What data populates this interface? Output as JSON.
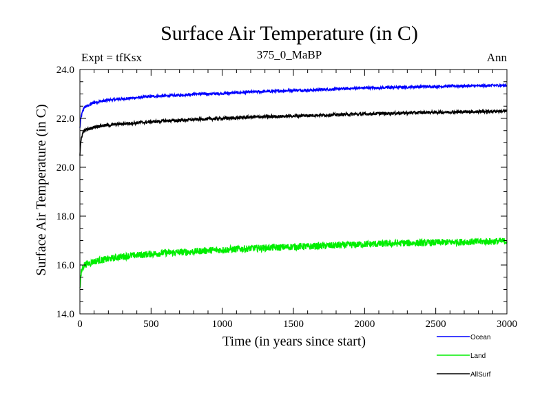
{
  "chart_data": {
    "type": "line",
    "title": "Surface Air Temperature (in C)",
    "subtitle_left": "Expt = tfKsx",
    "subtitle_center": "375_0_MaBP",
    "subtitle_right": "Ann",
    "xlabel": "Time (in years since start)",
    "ylabel": "Surface Air Temperature (in C)",
    "xlim": [
      0,
      3000
    ],
    "ylim": [
      14.0,
      24.0
    ],
    "x_ticks": [
      0,
      500,
      1000,
      1500,
      2000,
      2500,
      3000
    ],
    "x_tick_labels": [
      "0",
      "500",
      "1000",
      "1500",
      "2000",
      "2500",
      "3000"
    ],
    "y_ticks": [
      14,
      16,
      18,
      20,
      22,
      24
    ],
    "y_tick_labels": [
      "14.0",
      "16.0",
      "18.0",
      "20.0",
      "22.0",
      "24.0"
    ],
    "grid": false,
    "legend_position": "bottom-right",
    "series": [
      {
        "name": "Ocean",
        "color": "#0000ff",
        "x": [
          0,
          5,
          10,
          20,
          30,
          50,
          80,
          100,
          150,
          200,
          300,
          400,
          500,
          600,
          700,
          800,
          900,
          1000,
          1100,
          1200,
          1300,
          1400,
          1500,
          1600,
          1700,
          1800,
          1900,
          2000,
          2100,
          2200,
          2300,
          2400,
          2500,
          2600,
          2700,
          2800,
          2900,
          3000
        ],
        "values": [
          21.6,
          21.9,
          22.1,
          22.3,
          22.45,
          22.5,
          22.6,
          22.65,
          22.7,
          22.75,
          22.8,
          22.85,
          22.9,
          22.92,
          22.95,
          23.0,
          23.0,
          23.02,
          23.05,
          23.08,
          23.1,
          23.12,
          23.15,
          23.15,
          23.18,
          23.2,
          23.22,
          23.25,
          23.25,
          23.27,
          23.28,
          23.3,
          23.3,
          23.32,
          23.33,
          23.33,
          23.35,
          23.35
        ],
        "noise": 0.05
      },
      {
        "name": "Land",
        "color": "#00ee00",
        "x": [
          0,
          5,
          10,
          20,
          30,
          50,
          80,
          100,
          150,
          200,
          300,
          400,
          500,
          600,
          700,
          800,
          900,
          1000,
          1100,
          1200,
          1300,
          1400,
          1500,
          1600,
          1700,
          1800,
          1900,
          2000,
          2100,
          2200,
          2300,
          2400,
          2500,
          2600,
          2700,
          2800,
          2900,
          3000
        ],
        "values": [
          15.0,
          15.4,
          15.7,
          15.9,
          16.0,
          16.05,
          16.1,
          16.15,
          16.2,
          16.25,
          16.35,
          16.4,
          16.45,
          16.5,
          16.52,
          16.55,
          16.6,
          16.62,
          16.65,
          16.68,
          16.7,
          16.72,
          16.75,
          16.76,
          16.78,
          16.8,
          16.82,
          16.85,
          16.86,
          16.88,
          16.9,
          16.9,
          16.92,
          16.93,
          16.95,
          16.95,
          16.97,
          16.98
        ],
        "noise": 0.14
      },
      {
        "name": "AllSurf",
        "color": "#000000",
        "x": [
          0,
          5,
          10,
          20,
          30,
          50,
          80,
          100,
          150,
          200,
          300,
          400,
          500,
          600,
          700,
          800,
          900,
          1000,
          1100,
          1200,
          1300,
          1400,
          1500,
          1600,
          1700,
          1800,
          1900,
          2000,
          2100,
          2200,
          2300,
          2400,
          2500,
          2600,
          2700,
          2800,
          2900,
          3000
        ],
        "values": [
          20.5,
          20.9,
          21.2,
          21.4,
          21.5,
          21.55,
          21.6,
          21.65,
          21.7,
          21.72,
          21.78,
          21.82,
          21.86,
          21.9,
          21.92,
          21.95,
          21.98,
          22.0,
          22.02,
          22.05,
          22.07,
          22.08,
          22.1,
          22.12,
          22.13,
          22.15,
          22.17,
          22.18,
          22.2,
          22.21,
          22.22,
          22.24,
          22.25,
          22.26,
          22.27,
          22.28,
          22.29,
          22.3
        ],
        "noise": 0.06
      }
    ]
  }
}
